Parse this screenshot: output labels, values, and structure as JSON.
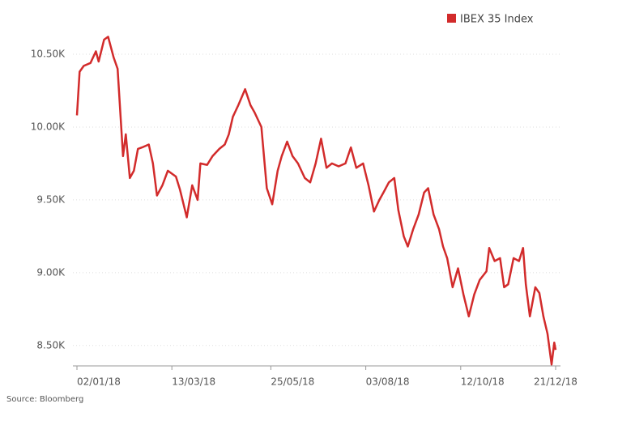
{
  "chart_data": {
    "type": "line",
    "source": "Source: Bloomberg",
    "x": [
      "02/01/18",
      "04/01/18",
      "07/01/18",
      "12/01/18",
      "16/01/18",
      "18/01/18",
      "22/01/18",
      "25/01/18",
      "29/01/18",
      "01/02/18",
      "05/02/18",
      "07/02/18",
      "10/02/18",
      "13/02/18",
      "16/02/18",
      "19/02/18",
      "24/02/18",
      "27/02/18",
      "02/03/18",
      "06/03/18",
      "10/03/18",
      "13/03/18",
      "16/03/18",
      "19/03/18",
      "24/03/18",
      "28/03/18",
      "01/04/18",
      "03/04/18",
      "08/04/18",
      "12/04/18",
      "17/04/18",
      "21/04/18",
      "24/04/18",
      "27/04/18",
      "01/05/18",
      "06/05/18",
      "10/05/18",
      "13/05/18",
      "18/05/18",
      "22/05/18",
      "26/05/18",
      "30/05/18",
      "02/06/18",
      "06/06/18",
      "10/06/18",
      "14/06/18",
      "19/06/18",
      "23/06/18",
      "27/06/18",
      "01/07/18",
      "05/07/18",
      "09/07/18",
      "14/07/18",
      "19/07/18",
      "23/07/18",
      "27/07/18",
      "01/08/18",
      "05/08/18",
      "09/08/18",
      "13/08/18",
      "16/08/18",
      "20/08/18",
      "24/08/18",
      "27/08/18",
      "31/08/18",
      "03/09/18",
      "07/09/18",
      "11/09/18",
      "15/09/18",
      "18/09/18",
      "22/09/18",
      "26/09/18",
      "29/09/18",
      "02/10/18",
      "06/10/18",
      "10/10/18",
      "14/10/18",
      "18/10/18",
      "22/10/18",
      "26/10/18",
      "31/10/18",
      "02/11/18",
      "06/11/18",
      "10/11/18",
      "13/11/18",
      "16/11/18",
      "20/11/18",
      "24/11/18",
      "27/11/18",
      "29/11/18",
      "02/12/18",
      "06/12/18",
      "09/12/18",
      "12/12/18",
      "15/12/18",
      "18/12/18",
      "20/12/18",
      "21/12/18"
    ],
    "series": [
      {
        "name": "IBEX 35 Index",
        "color": "#d22b2b",
        "values": [
          10080,
          10380,
          10420,
          10440,
          10520,
          10450,
          10600,
          10620,
          10480,
          10400,
          9800,
          9950,
          9650,
          9700,
          9850,
          9860,
          9880,
          9750,
          9530,
          9600,
          9700,
          9680,
          9660,
          9570,
          9380,
          9600,
          9500,
          9750,
          9740,
          9800,
          9850,
          9880,
          9950,
          10070,
          10150,
          10260,
          10150,
          10100,
          10000,
          9580,
          9470,
          9700,
          9800,
          9900,
          9800,
          9750,
          9650,
          9620,
          9750,
          9920,
          9720,
          9750,
          9730,
          9750,
          9860,
          9720,
          9750,
          9600,
          9420,
          9500,
          9550,
          9620,
          9650,
          9430,
          9250,
          9180,
          9300,
          9400,
          9550,
          9580,
          9400,
          9300,
          9180,
          9100,
          8900,
          9030,
          8850,
          8700,
          8850,
          8950,
          9010,
          9170,
          9080,
          9100,
          8900,
          8920,
          9100,
          9080,
          9170,
          8920,
          8700,
          8900,
          8860,
          8700,
          8580,
          8370,
          8520,
          8470
        ]
      }
    ],
    "xlim": [
      "02/01/18",
      "21/12/18"
    ],
    "xticks": [
      "02/01/18",
      "13/03/18",
      "25/05/18",
      "03/08/18",
      "12/10/18",
      "21/12/18"
    ],
    "ylim": [
      8360,
      10700
    ],
    "yticks": [
      {
        "value": 8500,
        "label": "8.50K"
      },
      {
        "value": 9000,
        "label": "9.00K"
      },
      {
        "value": 9500,
        "label": "9.50K"
      },
      {
        "value": 10000,
        "label": "10.00K"
      },
      {
        "value": 10500,
        "label": "10.50K"
      }
    ],
    "grid": true,
    "legend": "top-right"
  }
}
